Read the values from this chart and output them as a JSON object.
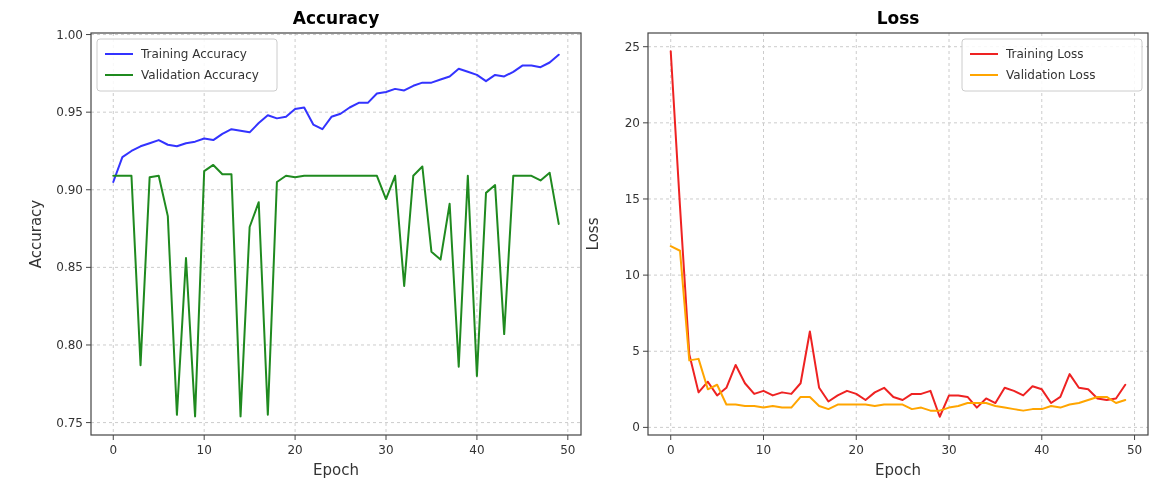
{
  "chart_data": [
    {
      "type": "line",
      "title": "Accuracy",
      "xlabel": "Epoch",
      "ylabel": "Accuracy",
      "x": [
        0,
        1,
        2,
        3,
        4,
        5,
        6,
        7,
        8,
        9,
        10,
        11,
        12,
        13,
        14,
        15,
        16,
        17,
        18,
        19,
        20,
        21,
        22,
        23,
        24,
        25,
        26,
        27,
        28,
        29,
        30,
        31,
        32,
        33,
        34,
        35,
        36,
        37,
        38,
        39,
        40,
        41,
        42,
        43,
        44,
        45,
        46,
        47,
        48,
        49
      ],
      "series": [
        {
          "name": "Training Accuracy",
          "color": "#3333ff",
          "values": [
            0.905,
            0.921,
            0.925,
            0.928,
            0.93,
            0.932,
            0.929,
            0.928,
            0.93,
            0.931,
            0.933,
            0.932,
            0.936,
            0.939,
            0.938,
            0.937,
            0.943,
            0.948,
            0.946,
            0.947,
            0.952,
            0.953,
            0.942,
            0.939,
            0.947,
            0.949,
            0.953,
            0.956,
            0.956,
            0.962,
            0.963,
            0.965,
            0.964,
            0.967,
            0.969,
            0.969,
            0.971,
            0.973,
            0.978,
            0.976,
            0.974,
            0.97,
            0.974,
            0.973,
            0.976,
            0.98,
            0.98,
            0.979,
            0.982,
            0.987
          ]
        },
        {
          "name": "Validation Accuracy",
          "color": "#1f8a1f",
          "values": [
            0.909,
            0.909,
            0.909,
            0.787,
            0.908,
            0.909,
            0.883,
            0.755,
            0.856,
            0.754,
            0.912,
            0.916,
            0.91,
            0.91,
            0.754,
            0.876,
            0.892,
            0.755,
            0.905,
            0.909,
            0.908,
            0.909,
            0.909,
            0.909,
            0.909,
            0.909,
            0.909,
            0.909,
            0.909,
            0.909,
            0.894,
            0.909,
            0.838,
            0.909,
            0.915,
            0.86,
            0.855,
            0.891,
            0.786,
            0.909,
            0.78,
            0.898,
            0.903,
            0.807,
            0.909,
            0.909,
            0.909,
            0.906,
            0.911,
            0.878
          ]
        }
      ],
      "xlim": [
        -2.45,
        51.45
      ],
      "xticks": [
        0,
        10,
        20,
        30,
        40,
        50
      ],
      "ylim": [
        0.742,
        1.001
      ],
      "yticks": [
        {
          "value": 0.75,
          "label": "0.75"
        },
        {
          "value": 0.8,
          "label": "0.80"
        },
        {
          "value": 0.85,
          "label": "0.85"
        },
        {
          "value": 0.9,
          "label": "0.90"
        },
        {
          "value": 0.95,
          "label": "0.95"
        },
        {
          "value": 1,
          "label": "1.00"
        }
      ],
      "grid": true,
      "legend": "top left",
      "line_style": "solid"
    },
    {
      "type": "line",
      "title": "Loss",
      "xlabel": "Epoch",
      "ylabel": "Loss",
      "x": [
        0,
        1,
        2,
        3,
        4,
        5,
        6,
        7,
        8,
        9,
        10,
        11,
        12,
        13,
        14,
        15,
        16,
        17,
        18,
        19,
        20,
        21,
        22,
        23,
        24,
        25,
        26,
        27,
        28,
        29,
        30,
        31,
        32,
        33,
        34,
        35,
        36,
        37,
        38,
        39,
        40,
        41,
        42,
        43,
        44,
        45,
        46,
        47,
        48,
        49
      ],
      "series": [
        {
          "name": "Training Loss",
          "color": "#ee2222",
          "values": [
            24.7,
            14.5,
            4.8,
            2.3,
            3.0,
            2.1,
            2.6,
            4.1,
            2.9,
            2.2,
            2.4,
            2.1,
            2.3,
            2.2,
            2.9,
            6.3,
            2.6,
            1.7,
            2.1,
            2.4,
            2.2,
            1.8,
            2.3,
            2.6,
            2.0,
            1.8,
            2.2,
            2.2,
            2.4,
            0.7,
            2.1,
            2.1,
            2.0,
            1.3,
            1.9,
            1.6,
            2.6,
            2.4,
            2.1,
            2.7,
            2.5,
            1.6,
            2.0,
            3.5,
            2.6,
            2.5,
            1.9,
            1.8,
            1.9,
            2.8
          ]
        },
        {
          "name": "Validation Loss",
          "color": "#ffa500",
          "values": [
            11.9,
            11.6,
            4.4,
            4.5,
            2.5,
            2.8,
            1.5,
            1.5,
            1.4,
            1.4,
            1.3,
            1.4,
            1.3,
            1.3,
            2.0,
            2.0,
            1.4,
            1.2,
            1.5,
            1.5,
            1.5,
            1.5,
            1.4,
            1.5,
            1.5,
            1.5,
            1.2,
            1.3,
            1.1,
            1.1,
            1.3,
            1.4,
            1.6,
            1.6,
            1.6,
            1.4,
            1.3,
            1.2,
            1.1,
            1.2,
            1.2,
            1.4,
            1.3,
            1.5,
            1.6,
            1.8,
            2.0,
            2.0,
            1.6,
            1.8
          ]
        }
      ],
      "xlim": [
        -2.45,
        51.45
      ],
      "xticks": [
        0,
        10,
        20,
        30,
        40,
        50
      ],
      "ylim": [
        -0.5,
        25.9
      ],
      "yticks": [
        0,
        5,
        10,
        15,
        20,
        25
      ],
      "grid": true,
      "legend": "top right",
      "line_style": "solid"
    }
  ]
}
